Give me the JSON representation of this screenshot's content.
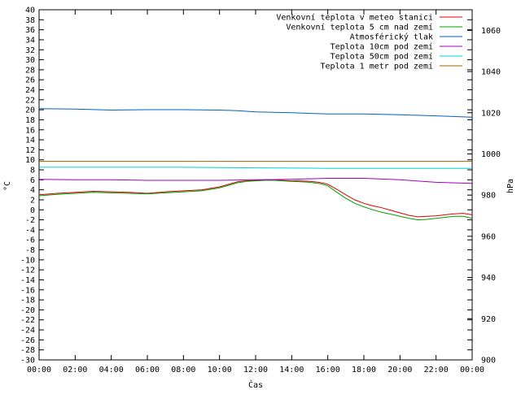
{
  "chart_data": {
    "type": "line",
    "xlabel": "Čas",
    "ylabel": "°C",
    "y2label": "hPa",
    "ylim": [
      -30,
      40
    ],
    "y2lim": [
      900,
      1070
    ],
    "x_ticks": [
      "00:00",
      "02:00",
      "04:00",
      "06:00",
      "08:00",
      "10:00",
      "12:00",
      "14:00",
      "16:00",
      "18:00",
      "20:00",
      "22:00",
      "00:00"
    ],
    "y_ticks": [
      40,
      38,
      36,
      34,
      32,
      30,
      28,
      26,
      24,
      22,
      20,
      18,
      16,
      14,
      12,
      10,
      8,
      6,
      4,
      2,
      0,
      -2,
      -4,
      -6,
      -8,
      -10,
      -12,
      -14,
      -16,
      -18,
      -20,
      -22,
      -24,
      -26,
      -28,
      -30
    ],
    "y2_ticks": [
      1060,
      1040,
      1020,
      1000,
      980,
      960,
      940,
      920,
      900
    ],
    "grid": false,
    "legend_position": "top-right",
    "series": [
      {
        "name": "Venkovní teplota v meteo stanici",
        "color": "#e00000",
        "axis": "y",
        "x": [
          0,
          1,
          2,
          3,
          4,
          5,
          6,
          7,
          8,
          9,
          10,
          10.5,
          11,
          11.5,
          12,
          12.5,
          13,
          13.5,
          14,
          14.5,
          15,
          15.5,
          16,
          16.5,
          17,
          17.5,
          18,
          18.5,
          19,
          19.5,
          20,
          20.5,
          21,
          21.5,
          22,
          22.5,
          23,
          23.5,
          24
        ],
        "values": [
          3.0,
          3.3,
          3.5,
          3.7,
          3.6,
          3.5,
          3.3,
          3.6,
          3.8,
          4.0,
          4.6,
          5.1,
          5.6,
          5.8,
          5.9,
          6.0,
          6.0,
          5.9,
          5.8,
          5.8,
          5.7,
          5.5,
          5.1,
          4.1,
          3.0,
          2.0,
          1.3,
          0.8,
          0.4,
          -0.1,
          -0.6,
          -1.1,
          -1.4,
          -1.3,
          -1.2,
          -1.0,
          -0.8,
          -0.7,
          -1.0
        ]
      },
      {
        "name": "Venkovní teplota 5 cm nad zemí",
        "color": "#00a000",
        "axis": "y",
        "x": [
          0,
          1,
          2,
          3,
          4,
          5,
          6,
          7,
          8,
          9,
          10,
          10.5,
          11,
          11.5,
          12,
          12.5,
          13,
          13.5,
          14,
          14.5,
          15,
          15.5,
          16,
          16.5,
          17,
          17.5,
          18,
          18.5,
          19,
          19.5,
          20,
          20.5,
          21,
          21.5,
          22,
          22.5,
          23,
          23.5,
          24
        ],
        "values": [
          2.8,
          3.1,
          3.3,
          3.5,
          3.4,
          3.3,
          3.2,
          3.4,
          3.6,
          3.8,
          4.4,
          4.9,
          5.4,
          5.7,
          5.8,
          5.9,
          5.9,
          5.8,
          5.7,
          5.6,
          5.5,
          5.3,
          4.8,
          3.5,
          2.3,
          1.3,
          0.6,
          0.0,
          -0.5,
          -0.9,
          -1.3,
          -1.7,
          -2.0,
          -1.9,
          -1.7,
          -1.5,
          -1.3,
          -1.3,
          -1.7
        ]
      },
      {
        "name": "Atmosférický tlak",
        "color": "#0060c0",
        "axis": "y2",
        "x": [
          0,
          2,
          4,
          6,
          8,
          10,
          11,
          12,
          14,
          16,
          18,
          20,
          22,
          24
        ],
        "values": [
          1022.0,
          1021.8,
          1021.3,
          1021.5,
          1021.5,
          1021.3,
          1021.0,
          1020.4,
          1020.0,
          1019.4,
          1019.4,
          1019.0,
          1018.5,
          1017.8
        ]
      },
      {
        "name": "Teplota 10cm pod zemí",
        "color": "#a000c0",
        "axis": "y",
        "x": [
          0,
          2,
          4,
          6,
          8,
          10,
          12,
          14,
          16,
          18,
          20,
          22,
          24
        ],
        "values": [
          6.1,
          6.0,
          6.0,
          5.9,
          5.9,
          5.9,
          6.0,
          6.1,
          6.3,
          6.3,
          6.0,
          5.5,
          5.3
        ]
      },
      {
        "name": "Teplota 50cm pod zemí",
        "color": "#00d0d0",
        "axis": "y",
        "x": [
          0,
          4,
          8,
          12,
          16,
          20,
          24
        ],
        "values": [
          8.5,
          8.5,
          8.5,
          8.4,
          8.3,
          8.3,
          8.3
        ]
      },
      {
        "name": "Teplota 1 metr pod zemí",
        "color": "#a06000",
        "axis": "y",
        "x": [
          0,
          6,
          12,
          18,
          24
        ],
        "values": [
          9.7,
          9.7,
          9.7,
          9.7,
          9.7
        ]
      }
    ]
  }
}
